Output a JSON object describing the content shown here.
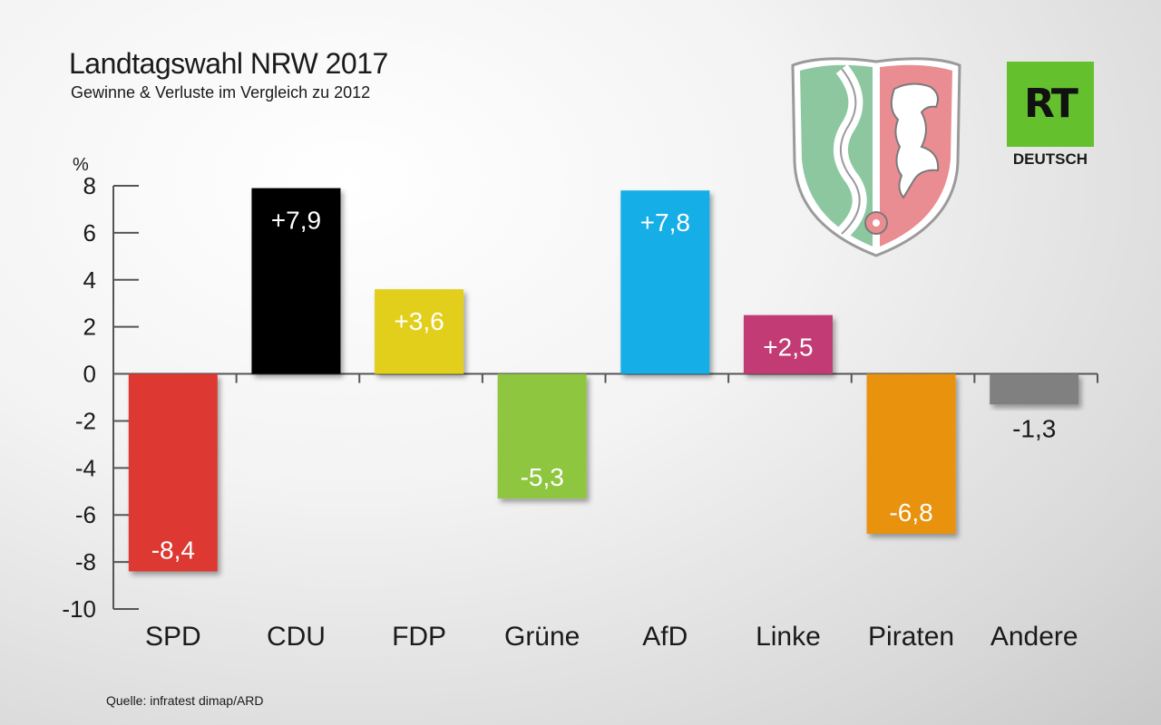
{
  "header": {
    "title": "Landtagswahl NRW 2017",
    "subtitle": "Gewinne & Verluste im Vergleich zu 2012"
  },
  "footer": {
    "source": "Quelle: infratest dimap/ARD"
  },
  "logo": {
    "mark": "RT",
    "sub": "DEUTSCH",
    "color": "#65c02d"
  },
  "crest": {
    "icon": "nrw-coat-of-arms-icon",
    "colors": {
      "green": "#8cc7a0",
      "red": "#e98d92",
      "white": "#ffffff"
    }
  },
  "chart_data": {
    "type": "bar",
    "ylabel": "%",
    "ylim": [
      -10,
      8
    ],
    "yticks": [
      8,
      6,
      4,
      2,
      0,
      -2,
      -4,
      -6,
      -8,
      -10
    ],
    "ytick_labels": [
      "8",
      "6",
      "4",
      "2",
      "0",
      "-2",
      "-4",
      "-6",
      "-8",
      "-10"
    ],
    "categories": [
      "SPD",
      "CDU",
      "FDP",
      "Grüne",
      "AfD",
      "Linke",
      "Piraten",
      "Andere"
    ],
    "values": [
      -8.4,
      7.9,
      3.6,
      -5.3,
      7.8,
      2.5,
      -6.8,
      -1.3
    ],
    "value_labels": [
      "-8,4",
      "+7,9",
      "+3,6",
      "-5,3",
      "+7,8",
      "+2,5",
      "-6,8",
      "-1,3"
    ],
    "colors": [
      "#dd3830",
      "#000000",
      "#e2cf1e",
      "#8fc641",
      "#14aee6",
      "#c23a75",
      "#e8920f",
      "#808080"
    ],
    "label_outside": [
      false,
      false,
      false,
      false,
      false,
      false,
      false,
      true
    ],
    "grid": false,
    "legend": "none"
  }
}
